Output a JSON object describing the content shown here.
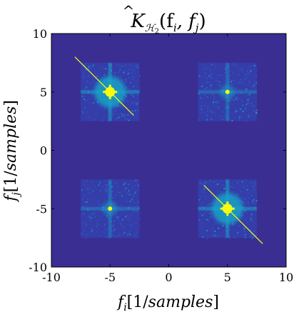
{
  "chart_data": {
    "type": "heatmap",
    "title": {
      "hat_symbol": "^",
      "main": "K",
      "subscript": "ℋ",
      "subscript_index": "2",
      "args": "(f",
      "arg1_sub": "i",
      "sep": ", f",
      "arg2_sub": "j",
      "close": ")"
    },
    "xlabel": {
      "var": "f",
      "sub": "i",
      "bracket_open": "[1/",
      "unit": "samples",
      "bracket_close": "]"
    },
    "ylabel": {
      "var": "f",
      "sub": "j",
      "bracket_open": "[1/",
      "unit": "samples",
      "bracket_close": "]"
    },
    "xlim": [
      -10,
      10
    ],
    "ylim": [
      -10,
      10
    ],
    "xticks": [
      -10,
      -5,
      0,
      5,
      10
    ],
    "yticks": [
      -10,
      -5,
      0,
      5,
      10
    ],
    "xtick_labels": [
      "-10",
      "-5",
      "0",
      "5",
      "10"
    ],
    "ytick_labels": [
      "-10",
      "-5",
      "0",
      "5",
      "10"
    ],
    "grid": false,
    "colormap": "parula",
    "colors": {
      "background": "#3a2e93",
      "low": "#2f5ad0",
      "mid": "#18a8c8",
      "high": "#f9fb0e",
      "axis": "#000000"
    },
    "blocks": [
      {
        "center": [
          -5,
          5
        ],
        "half_width": 2.5,
        "peak": 1.0,
        "diagonal": true
      },
      {
        "center": [
          5,
          5
        ],
        "half_width": 2.5,
        "peak": 0.7,
        "diagonal": false
      },
      {
        "center": [
          -5,
          -5
        ],
        "half_width": 2.5,
        "peak": 0.7,
        "diagonal": false
      },
      {
        "center": [
          5,
          -5
        ],
        "half_width": 2.5,
        "peak": 1.0,
        "diagonal": true
      }
    ],
    "diagonal_lines": [
      {
        "from": [
          -8,
          8
        ],
        "to": [
          -3,
          3
        ]
      },
      {
        "from": [
          3,
          -3
        ],
        "to": [
          8,
          -8
        ]
      }
    ]
  }
}
